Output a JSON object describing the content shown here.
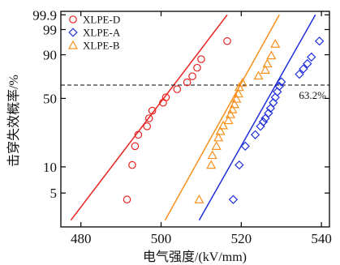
{
  "chart_data": {
    "type": "scatter",
    "xlabel": "电气强度/(kV/mm)",
    "ylabel": "击穿失效概率/%",
    "xlim": [
      475,
      542
    ],
    "x_ticks": [
      480,
      500,
      520,
      540
    ],
    "y_scale": "weibull-probability",
    "y_ticks": [
      5,
      10,
      50,
      90,
      99,
      99.9
    ],
    "ylim": [
      2,
      99.95
    ],
    "grid": false,
    "legend_position": "top-left",
    "reference_line": {
      "y": 63.2,
      "label": "63.2%",
      "style": "dashed"
    },
    "series": [
      {
        "name": "XLPE-D",
        "marker": "circle",
        "color": "#e8231f",
        "points": [
          [
            491.5,
            4.2
          ],
          [
            492.8,
            10.5
          ],
          [
            493.5,
            17.0
          ],
          [
            494.3,
            22.5
          ],
          [
            496.5,
            27.5
          ],
          [
            497.0,
            33.0
          ],
          [
            497.8,
            39.0
          ],
          [
            500.5,
            46.0
          ],
          [
            501.2,
            51.0
          ],
          [
            504.0,
            59.0
          ],
          [
            506.5,
            66.0
          ],
          [
            507.8,
            72.0
          ],
          [
            509.0,
            80.0
          ],
          [
            510.0,
            87.0
          ],
          [
            516.5,
            96.5
          ]
        ],
        "fit_line": [
          [
            477.5,
            2.4
          ],
          [
            516.5,
            99.9
          ]
        ]
      },
      {
        "name": "XLPE-A",
        "marker": "diamond",
        "color": "#1f2fdc",
        "points": [
          [
            518.0,
            4.2
          ],
          [
            519.5,
            10.5
          ],
          [
            521.0,
            17.0
          ],
          [
            523.5,
            22.5
          ],
          [
            524.8,
            27.5
          ],
          [
            525.5,
            30.5
          ],
          [
            526.0,
            33.0
          ],
          [
            526.8,
            37.0
          ],
          [
            527.3,
            41.0
          ],
          [
            528.0,
            46.0
          ],
          [
            528.5,
            51.0
          ],
          [
            529.0,
            56.5
          ],
          [
            529.5,
            62.0
          ],
          [
            530.0,
            66.5
          ],
          [
            534.5,
            74.0
          ],
          [
            535.5,
            79.0
          ],
          [
            536.5,
            83.5
          ],
          [
            537.5,
            88.5
          ],
          [
            539.5,
            96.5
          ]
        ],
        "fit_line": [
          [
            509.5,
            2.4
          ],
          [
            538.5,
            99.9
          ]
        ]
      },
      {
        "name": "XLPE-B",
        "marker": "triangle",
        "color": "#f7901e",
        "points": [
          [
            509.5,
            4.2
          ],
          [
            512.5,
            10.5
          ],
          [
            512.8,
            13.5
          ],
          [
            513.8,
            17.0
          ],
          [
            514.3,
            21.0
          ],
          [
            514.8,
            24.5
          ],
          [
            515.5,
            28.0
          ],
          [
            516.8,
            31.5
          ],
          [
            517.3,
            36.0
          ],
          [
            517.8,
            40.0
          ],
          [
            518.3,
            44.5
          ],
          [
            518.8,
            49.5
          ],
          [
            519.3,
            54.5
          ],
          [
            519.5,
            61.0
          ],
          [
            520.3,
            65.5
          ],
          [
            524.3,
            72.5
          ],
          [
            526.0,
            78.0
          ],
          [
            526.5,
            83.5
          ],
          [
            527.5,
            89.5
          ],
          [
            528.5,
            95.5
          ]
        ],
        "fit_line": [
          [
            501.0,
            2.4
          ],
          [
            529.5,
            99.9
          ]
        ]
      }
    ]
  }
}
